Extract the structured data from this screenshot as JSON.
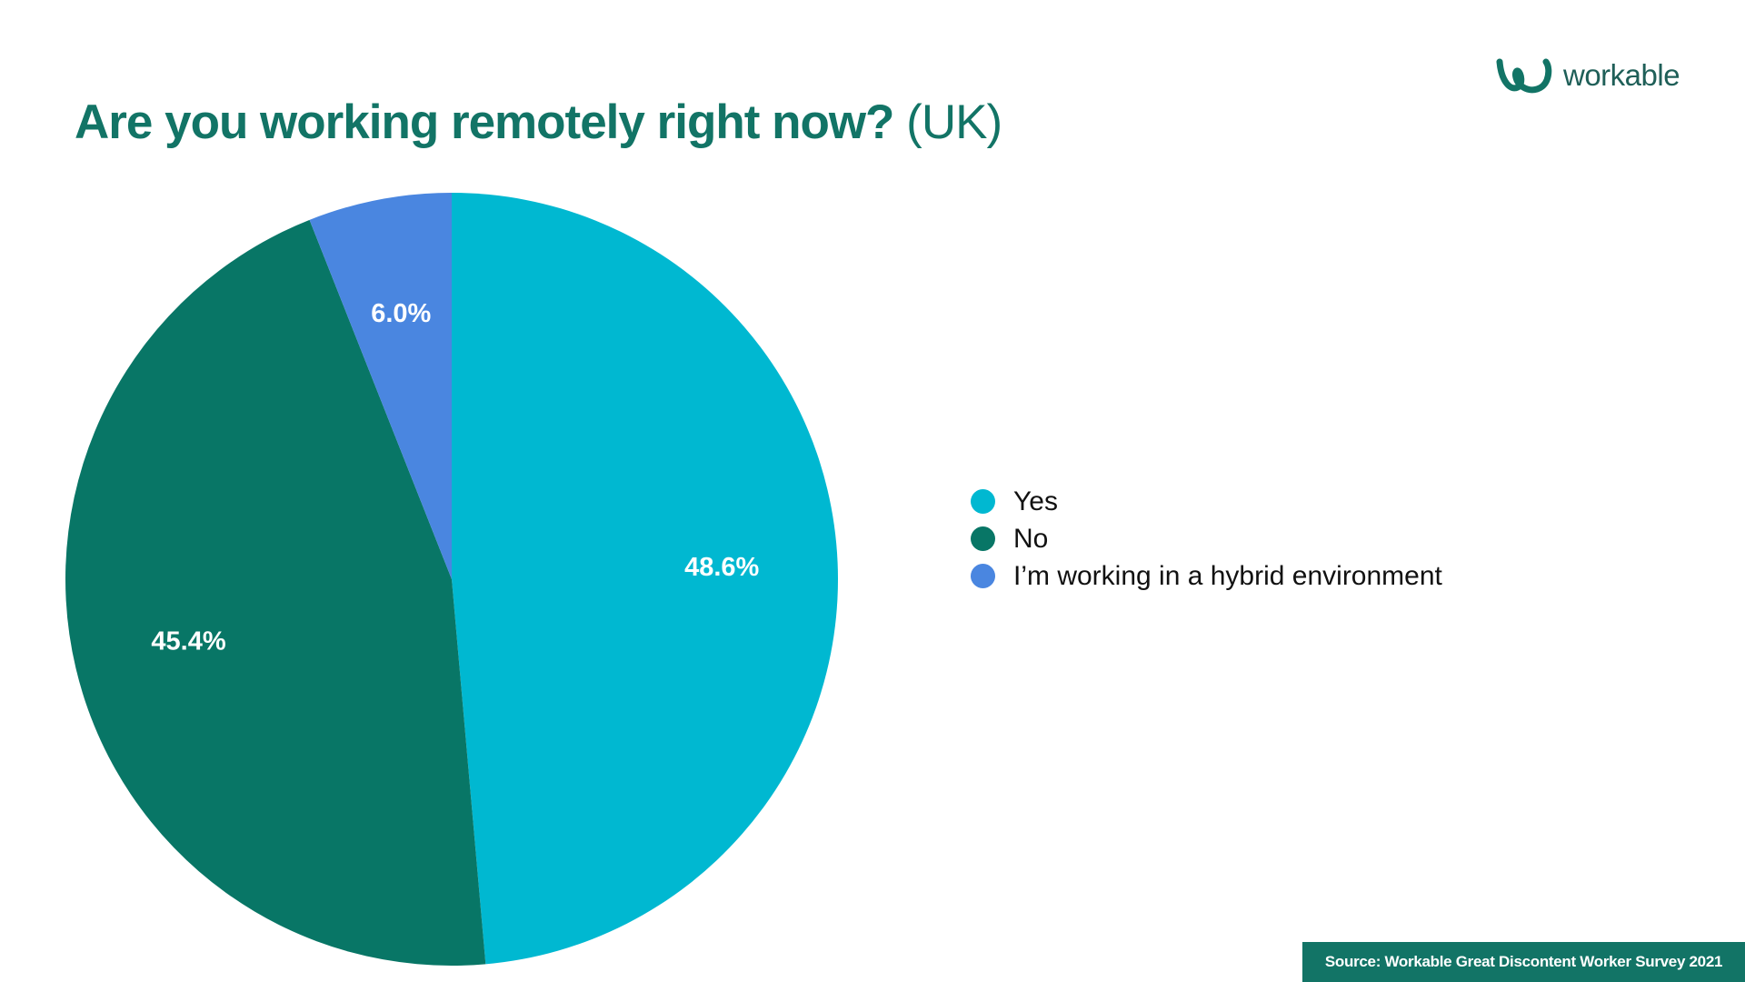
{
  "title": {
    "main": "Are you working remotely right now?",
    "region": "(UK)"
  },
  "logo": {
    "text": "workable",
    "icon": "workable-logo-icon",
    "color": "#127466"
  },
  "source": "Source: Workable Great Discontent Worker Survey 2021",
  "chart_data": {
    "type": "pie",
    "title": "Are you working remotely right now? (UK)",
    "legend_position": "right",
    "start": "top",
    "direction": "clockwise",
    "slices": [
      {
        "label": "Yes",
        "value": 48.6,
        "display": "48.6%",
        "color": "#00B8D1"
      },
      {
        "label": "No",
        "value": 45.4,
        "display": "45.4%",
        "color": "#087666"
      },
      {
        "label": "I’m working in a hybrid environment",
        "value": 6.0,
        "display": "6.0%",
        "color": "#4A86E0"
      }
    ]
  }
}
